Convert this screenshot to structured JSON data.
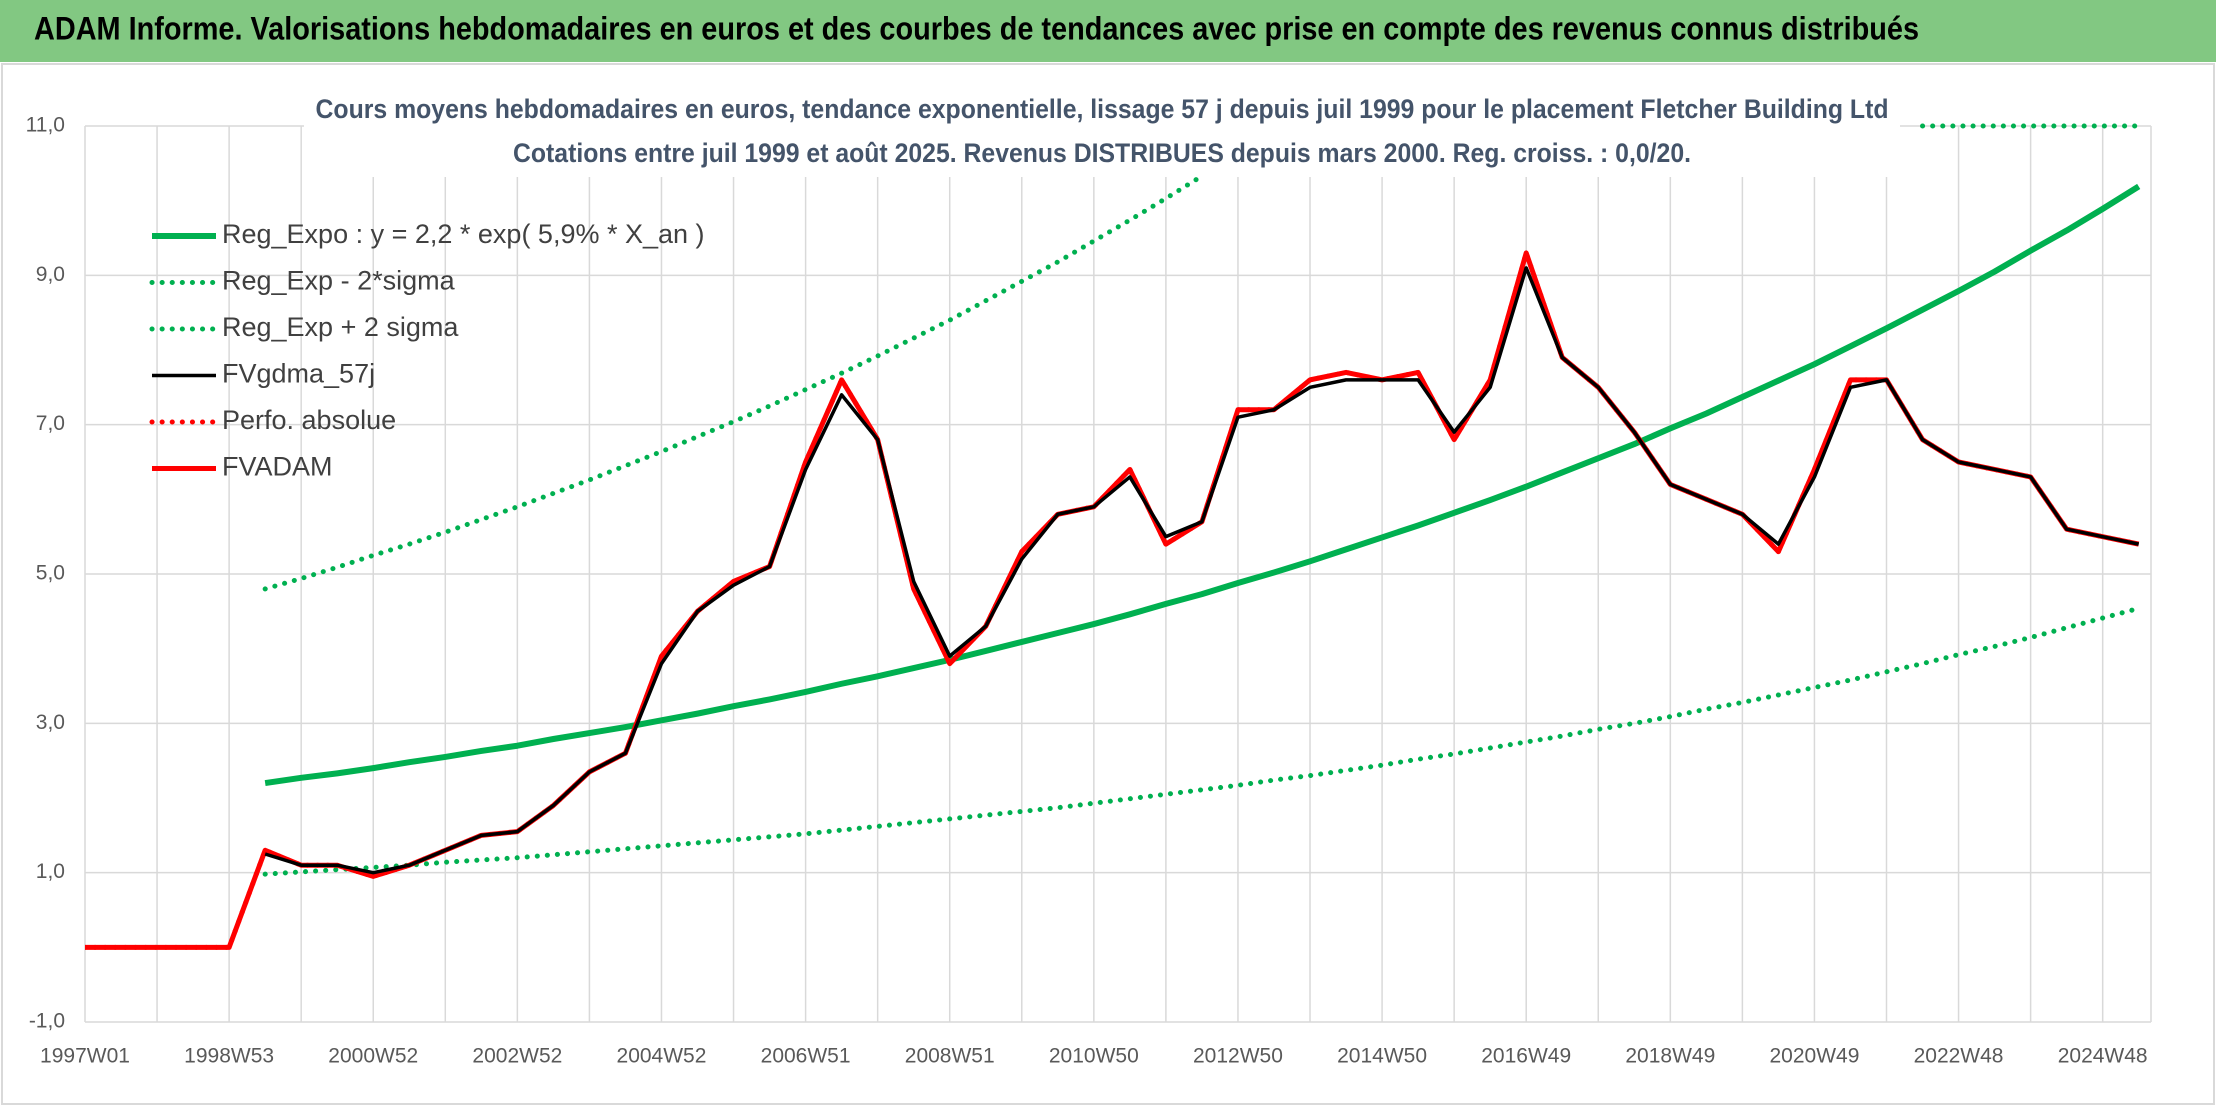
{
  "header": {
    "title": "ADAM Informe. Valorisations hebdomadaires en euros et des courbes de tendances avec prise en compte des revenus connus distribués"
  },
  "chart_data": {
    "type": "line",
    "title": "Cours moyens hebdomadaires en euros, tendance exponentielle, lissage 57 j depuis juil 1999 pour le placement Fletcher Building Ltd",
    "subtitle": "Cotations entre juil 1999 et août 2025. Revenus DISTRIBUES depuis mars 2000. Reg. croiss. : 0,0/20.",
    "categories": [
      "1997W01",
      null,
      null,
      null,
      "1998W53",
      null,
      null,
      null,
      "2000W52",
      null,
      null,
      null,
      "2002W52",
      null,
      null,
      null,
      "2004W52",
      null,
      null,
      null,
      "2006W51",
      null,
      null,
      null,
      "2008W51",
      null,
      null,
      null,
      "2010W50",
      null,
      null,
      null,
      "2012W50",
      null,
      null,
      null,
      "2014W50",
      null,
      null,
      null,
      "2016W49",
      null,
      null,
      null,
      "2018W49",
      null,
      null,
      null,
      "2020W49",
      null,
      null,
      null,
      "2022W48",
      null,
      null,
      null,
      "2024W48",
      null
    ],
    "ylim": [
      -1,
      11
    ],
    "yticks": [
      {
        "value": -1,
        "label": "-1,0"
      },
      {
        "value": 1,
        "label": "1,0"
      },
      {
        "value": 3,
        "label": "3,0"
      },
      {
        "value": 5,
        "label": "5,0"
      },
      {
        "value": 7,
        "label": "7,0"
      },
      {
        "value": 9,
        "label": "9,0"
      },
      {
        "value": 11,
        "label": "11,0"
      }
    ],
    "grid": true,
    "legend": "upper left",
    "series": [
      {
        "name": "Reg_Expo : y = 2,2 * exp( 5,9% *  X_an )",
        "color": "#00b050",
        "dash": false,
        "values": [
          null,
          null,
          null,
          null,
          null,
          2.2,
          2.27,
          2.33,
          2.4,
          2.48,
          2.55,
          2.63,
          2.7,
          2.79,
          2.87,
          2.95,
          3.04,
          3.13,
          3.23,
          3.32,
          3.42,
          3.53,
          3.63,
          3.74,
          3.85,
          3.97,
          4.09,
          4.21,
          4.33,
          4.46,
          4.6,
          4.73,
          4.88,
          5.02,
          5.17,
          5.33,
          5.49,
          5.65,
          5.82,
          5.99,
          6.17,
          6.36,
          6.55,
          6.74,
          6.95,
          7.15,
          7.37,
          7.59,
          7.81,
          8.05,
          8.29,
          8.54,
          8.79,
          9.05,
          9.33,
          9.6,
          9.89,
          10.19
        ]
      },
      {
        "name": "Reg_Exp - 2*sigma",
        "color": "#00b050",
        "dash": true,
        "values": [
          null,
          null,
          null,
          null,
          null,
          0.98,
          1.01,
          1.04,
          1.07,
          1.1,
          1.14,
          1.17,
          1.2,
          1.24,
          1.28,
          1.32,
          1.36,
          1.4,
          1.44,
          1.48,
          1.52,
          1.57,
          1.62,
          1.67,
          1.72,
          1.77,
          1.82,
          1.87,
          1.93,
          1.99,
          2.05,
          2.11,
          2.17,
          2.24,
          2.3,
          2.37,
          2.44,
          2.52,
          2.59,
          2.67,
          2.75,
          2.83,
          2.92,
          3.0,
          3.09,
          3.19,
          3.28,
          3.38,
          3.48,
          3.58,
          3.69,
          3.8,
          3.92,
          4.03,
          4.15,
          4.28,
          4.41,
          4.54
        ]
      },
      {
        "name": "Reg_Exp + 2 sigma",
        "color": "#00b050",
        "dash": true,
        "values": [
          null,
          null,
          null,
          null,
          null,
          4.8,
          4.94,
          5.09,
          5.25,
          5.4,
          5.56,
          5.73,
          5.9,
          6.08,
          6.26,
          6.45,
          6.64,
          6.84,
          7.04,
          7.25,
          7.47,
          7.69,
          7.92,
          8.16,
          8.4,
          8.66,
          8.92,
          9.18,
          9.46,
          9.74,
          10.03,
          10.33,
          null,
          null,
          null,
          null,
          null,
          null,
          null,
          null,
          null,
          null,
          null,
          null,
          null,
          null,
          null,
          null,
          null,
          null,
          null,
          11,
          11,
          11,
          11,
          11,
          11,
          11
        ]
      },
      {
        "name": "FVgdma_57j",
        "color": "#000000",
        "dash": false,
        "values": [
          null,
          null,
          null,
          null,
          null,
          1.25,
          1.1,
          1.1,
          1.0,
          1.1,
          1.3,
          1.5,
          1.55,
          1.9,
          2.35,
          2.6,
          3.8,
          4.5,
          4.85,
          5.1,
          6.4,
          7.4,
          6.8,
          4.9,
          3.9,
          4.3,
          5.2,
          5.8,
          5.9,
          6.3,
          5.5,
          5.7,
          7.1,
          7.2,
          7.5,
          7.6,
          7.6,
          7.6,
          6.9,
          7.5,
          9.1,
          7.9,
          7.5,
          6.9,
          6.2,
          6.0,
          5.8,
          5.4,
          6.3,
          7.5,
          7.6,
          6.8,
          6.5,
          6.4,
          6.3,
          5.6,
          5.5,
          5.4
        ]
      },
      {
        "name": "Perfo. absolue",
        "color": "#ff0000",
        "dash": true,
        "values": [
          0,
          0,
          0,
          0,
          0,
          1.3,
          1.1,
          1.1,
          0.95,
          1.1,
          1.3,
          1.5,
          1.55,
          1.9,
          2.35,
          2.6,
          3.9,
          4.5,
          4.9,
          5.1,
          6.5,
          7.6,
          6.8,
          4.8,
          3.8,
          4.3,
          5.3,
          5.8,
          5.9,
          6.4,
          5.4,
          5.7,
          7.2,
          7.2,
          7.6,
          7.7,
          7.6,
          7.7,
          6.8,
          7.6,
          9.3,
          7.9,
          7.5,
          6.9,
          6.2,
          6.0,
          5.8,
          5.3,
          6.4,
          7.6,
          7.6,
          6.8,
          6.5,
          6.4,
          6.3,
          5.6,
          5.5,
          5.4
        ]
      },
      {
        "name": "FVADAM",
        "color": "#ff0000",
        "dash": false,
        "values": [
          0,
          0,
          0,
          0,
          0,
          1.3,
          1.1,
          1.1,
          0.95,
          1.1,
          1.3,
          1.5,
          1.55,
          1.9,
          2.35,
          2.6,
          3.9,
          4.5,
          4.9,
          5.1,
          6.5,
          7.6,
          6.8,
          4.8,
          3.8,
          4.3,
          5.3,
          5.8,
          5.9,
          6.4,
          5.4,
          5.7,
          7.2,
          7.2,
          7.6,
          7.7,
          7.6,
          7.7,
          6.8,
          7.6,
          9.3,
          7.9,
          7.5,
          6.9,
          6.2,
          6.0,
          5.8,
          5.3,
          6.4,
          7.6,
          7.6,
          6.8,
          6.5,
          6.4,
          6.3,
          5.6,
          5.5,
          5.4
        ]
      }
    ]
  }
}
